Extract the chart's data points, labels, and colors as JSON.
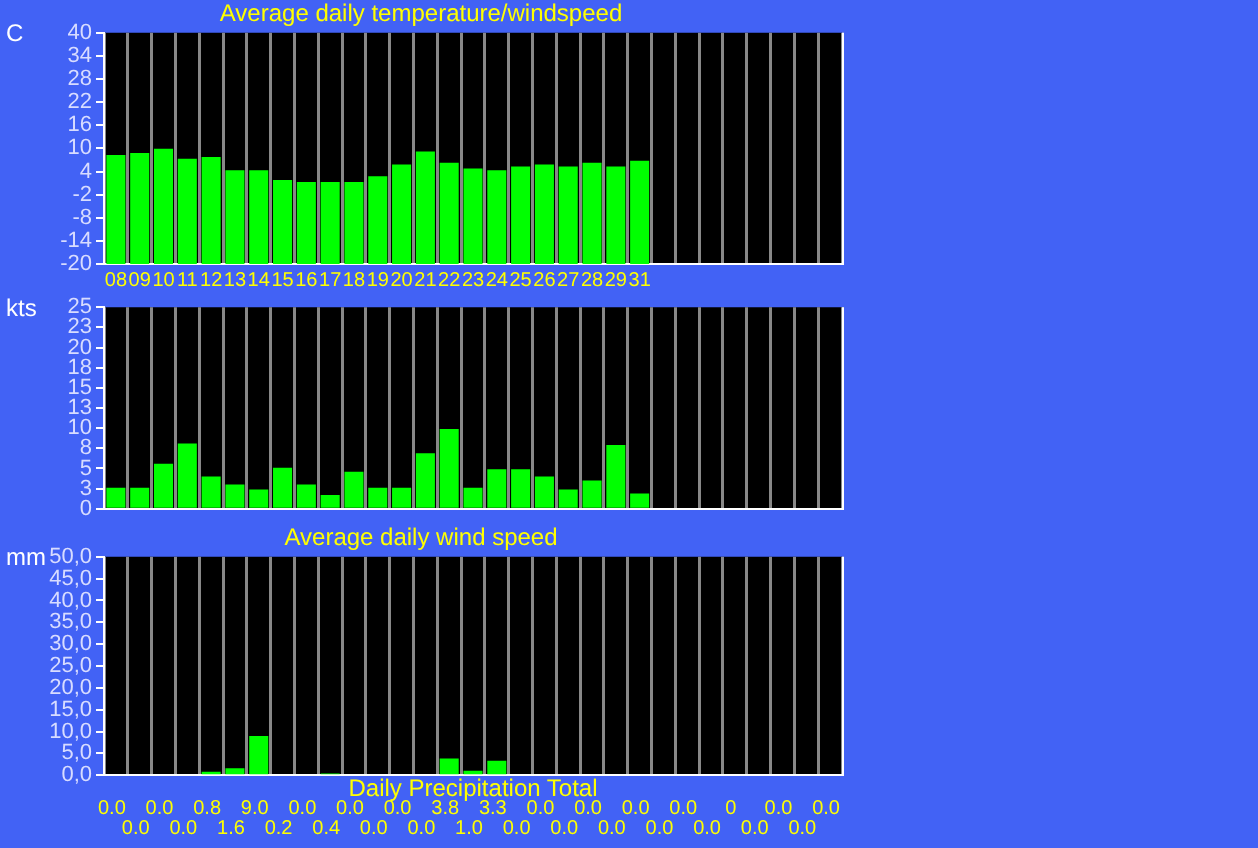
{
  "chart_data": [
    {
      "type": "bar",
      "title": "Average daily temperature/windspeed",
      "ylabel": "C",
      "categories": [
        "08",
        "09",
        "10",
        "11",
        "12",
        "13",
        "14",
        "15",
        "16",
        "17",
        "18",
        "19",
        "20",
        "21",
        "22",
        "23",
        "24",
        "25",
        "26",
        "27",
        "28",
        "29",
        "31",
        null,
        null,
        null,
        null,
        null,
        null,
        null,
        null
      ],
      "values": [
        28.3,
        28.8,
        29.9,
        27.3,
        27.8,
        24.3,
        24.3,
        21.8,
        21.3,
        21.3,
        21.3,
        22.8,
        25.8,
        29.2,
        26.3,
        24.8,
        24.3,
        25.3,
        25.8,
        25.3,
        26.3,
        25.3,
        26.8,
        null,
        null,
        null,
        null,
        null,
        null,
        null,
        null
      ],
      "base": [
        -20,
        -20,
        -20,
        -20,
        -20,
        -20,
        -20,
        -20,
        -20,
        -20,
        -20,
        -20,
        -20,
        -20,
        -20,
        -20,
        -20,
        -20,
        -20,
        -20,
        -20,
        -20,
        -20,
        null,
        null,
        null,
        null,
        null,
        null,
        null,
        null
      ],
      "color": "#00ff00",
      "ylim": [
        -20,
        40
      ],
      "yticks": [
        -20,
        -14,
        -8,
        -2,
        4,
        10,
        16,
        22,
        28,
        34,
        40
      ],
      "grid": "x"
    },
    {
      "type": "bar",
      "ylabel": "kts",
      "categories": [
        null,
        null,
        null,
        null,
        null,
        null,
        null,
        null,
        null,
        null,
        null,
        null,
        null,
        null,
        null,
        null,
        null,
        null,
        null,
        null,
        null,
        null,
        null,
        null,
        null,
        null,
        null,
        null,
        null,
        null,
        null
      ],
      "values": [
        2.6,
        2.6,
        5.6,
        8.1,
        4.0,
        3.0,
        2.4,
        5.1,
        3.0,
        1.7,
        4.6,
        2.6,
        2.6,
        6.9,
        9.9,
        2.6,
        4.9,
        4.9,
        4.0,
        2.4,
        3.5,
        7.9,
        1.9,
        null,
        null,
        null,
        null,
        null,
        null,
        null,
        null
      ],
      "color": "#00ff00",
      "ylim": [
        0,
        25
      ],
      "yticks": [
        0,
        {
          "value": 2.5,
          "label": "3"
        },
        5,
        {
          "value": 7.5,
          "label": "8"
        },
        10,
        {
          "value": 12.5,
          "label": "13"
        },
        15,
        {
          "value": 17.5,
          "label": "18"
        },
        20,
        {
          "value": 22.5,
          "label": "23"
        },
        25
      ],
      "grid": "x"
    },
    {
      "type": "bar",
      "title": "Average daily wind speed",
      "xlabel": "Daily Precipitation Total",
      "ylabel": "mm",
      "categories": [
        null,
        null,
        null,
        null,
        null,
        null,
        null,
        null,
        null,
        null,
        null,
        null,
        null,
        null,
        null,
        null,
        null,
        null,
        null,
        null,
        null,
        null,
        null,
        null,
        null,
        null,
        null,
        null,
        null,
        null,
        null
      ],
      "values": [
        0,
        0,
        0,
        0,
        0.8,
        1.6,
        9.0,
        0.2,
        0,
        0.4,
        0,
        0,
        0,
        0,
        3.8,
        1.0,
        3.3,
        0,
        0,
        0,
        0,
        0,
        0,
        0,
        0,
        0,
        0,
        0,
        0,
        0,
        0
      ],
      "value_labels": [
        "0.0",
        "0.0",
        "0.0",
        "0.0",
        "0.8",
        "1.6",
        "9.0",
        "0.2",
        "0.0",
        "0.4",
        "0.0",
        "0.0",
        "0.0",
        "0.0",
        "3.8",
        "1.0",
        "3.3",
        "0.0",
        "0.0",
        "0.0",
        "0.0",
        "0.0",
        "0.0",
        "0.0",
        "0.0",
        "0.0",
        "0",
        "0.0",
        "0.0",
        "0.0",
        "0.0"
      ],
      "color": "#00ff00",
      "ylim": [
        0,
        50
      ],
      "yticks": [
        {
          "value": 0,
          "label": "0,0"
        },
        {
          "value": 5,
          "label": "5,0"
        },
        {
          "value": 10,
          "label": "10,0"
        },
        {
          "value": 15,
          "label": "15,0"
        },
        {
          "value": 20,
          "label": "20,0"
        },
        {
          "value": 25,
          "label": "25,0"
        },
        {
          "value": 30,
          "label": "30,0"
        },
        {
          "value": 35,
          "label": "35,0"
        },
        {
          "value": 40,
          "label": "40,0"
        },
        {
          "value": 45,
          "label": "45,0"
        },
        {
          "value": 50,
          "label": "50,0"
        }
      ],
      "grid": "x"
    }
  ]
}
